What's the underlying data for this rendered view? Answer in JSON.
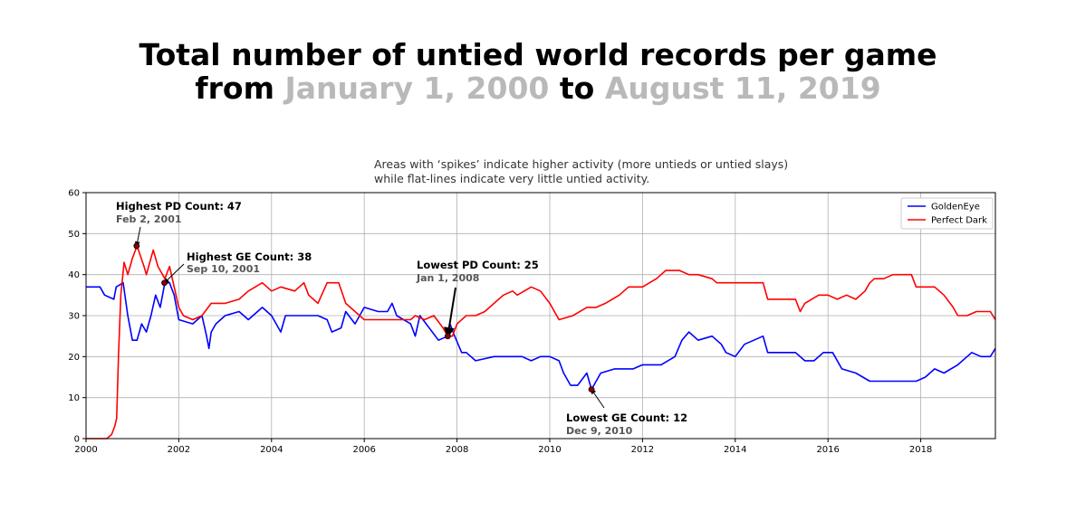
{
  "header": {
    "line1": "Total number of untied world records per game",
    "line2_prefix": "from ",
    "start_date": "January 1, 2000",
    "line2_mid": " to ",
    "end_date": "August 11, 2019"
  },
  "subtitle": {
    "line1": "Areas with ‘spikes’ indicate higher activity (more untieds or untied slays)",
    "line2": "while flat-lines indicate very little untied activity."
  },
  "chart_data": {
    "type": "line",
    "title": "Total number of untied world records per game from January 1, 2000 to August 11, 2019",
    "xlabel": "",
    "ylabel": "",
    "xlim": [
      2000,
      2019.61
    ],
    "ylim": [
      0,
      60
    ],
    "x_ticks": [
      "2000",
      "2002",
      "2004",
      "2006",
      "2008",
      "2010",
      "2012",
      "2014",
      "2016",
      "2018"
    ],
    "y_ticks": [
      "0",
      "10",
      "20",
      "30",
      "40",
      "50",
      "60"
    ],
    "grid": true,
    "legend_position": "top-right",
    "colors": {
      "GoldenEye": "#0000ff",
      "Perfect Dark": "#ff0000",
      "grid": "#b0b0b0",
      "annotation_marker": "#8b0000"
    },
    "series": [
      {
        "name": "GoldenEye",
        "color": "#0000ff",
        "points": [
          [
            2000.0,
            37
          ],
          [
            2000.3,
            37
          ],
          [
            2000.4,
            35
          ],
          [
            2000.6,
            34
          ],
          [
            2000.65,
            37
          ],
          [
            2000.8,
            38
          ],
          [
            2000.9,
            30
          ],
          [
            2001.0,
            24
          ],
          [
            2001.1,
            24
          ],
          [
            2001.2,
            28
          ],
          [
            2001.3,
            26
          ],
          [
            2001.4,
            30
          ],
          [
            2001.5,
            35
          ],
          [
            2001.6,
            32
          ],
          [
            2001.7,
            38
          ],
          [
            2001.8,
            38
          ],
          [
            2001.9,
            35
          ],
          [
            2002.0,
            29
          ],
          [
            2002.3,
            28
          ],
          [
            2002.5,
            30
          ],
          [
            2002.6,
            25
          ],
          [
            2002.65,
            22
          ],
          [
            2002.7,
            26
          ],
          [
            2002.8,
            28
          ],
          [
            2003.0,
            30
          ],
          [
            2003.3,
            31
          ],
          [
            2003.5,
            29
          ],
          [
            2003.8,
            32
          ],
          [
            2004.0,
            30
          ],
          [
            2004.2,
            26
          ],
          [
            2004.3,
            30
          ],
          [
            2005.0,
            30
          ],
          [
            2005.2,
            29
          ],
          [
            2005.3,
            26
          ],
          [
            2005.5,
            27
          ],
          [
            2005.6,
            31
          ],
          [
            2005.8,
            28
          ],
          [
            2006.0,
            32
          ],
          [
            2006.3,
            31
          ],
          [
            2006.5,
            31
          ],
          [
            2006.6,
            33
          ],
          [
            2006.7,
            30
          ],
          [
            2007.0,
            28
          ],
          [
            2007.1,
            25
          ],
          [
            2007.2,
            30
          ],
          [
            2007.4,
            27
          ],
          [
            2007.6,
            24
          ],
          [
            2007.8,
            25
          ],
          [
            2007.85,
            28
          ],
          [
            2007.95,
            25
          ],
          [
            2008.1,
            21
          ],
          [
            2008.2,
            21
          ],
          [
            2008.4,
            19
          ],
          [
            2008.8,
            20
          ],
          [
            2009.4,
            20
          ],
          [
            2009.6,
            19
          ],
          [
            2009.8,
            20
          ],
          [
            2010.0,
            20
          ],
          [
            2010.2,
            19
          ],
          [
            2010.3,
            16
          ],
          [
            2010.45,
            13
          ],
          [
            2010.6,
            13
          ],
          [
            2010.8,
            16
          ],
          [
            2010.9,
            12
          ],
          [
            2011.0,
            14
          ],
          [
            2011.1,
            16
          ],
          [
            2011.4,
            17
          ],
          [
            2011.8,
            17
          ],
          [
            2012.0,
            18
          ],
          [
            2012.4,
            18
          ],
          [
            2012.7,
            20
          ],
          [
            2012.85,
            24
          ],
          [
            2013.0,
            26
          ],
          [
            2013.2,
            24
          ],
          [
            2013.5,
            25
          ],
          [
            2013.7,
            23
          ],
          [
            2013.8,
            21
          ],
          [
            2014.0,
            20
          ],
          [
            2014.2,
            23
          ],
          [
            2014.4,
            24
          ],
          [
            2014.6,
            25
          ],
          [
            2014.7,
            21
          ],
          [
            2015.3,
            21
          ],
          [
            2015.5,
            19
          ],
          [
            2015.7,
            19
          ],
          [
            2015.9,
            21
          ],
          [
            2016.1,
            21
          ],
          [
            2016.3,
            17
          ],
          [
            2016.6,
            16
          ],
          [
            2016.9,
            14
          ],
          [
            2017.6,
            14
          ],
          [
            2017.9,
            14
          ],
          [
            2018.1,
            15
          ],
          [
            2018.3,
            17
          ],
          [
            2018.5,
            16
          ],
          [
            2018.8,
            18
          ],
          [
            2019.0,
            20
          ],
          [
            2019.1,
            21
          ],
          [
            2019.3,
            20
          ],
          [
            2019.5,
            20
          ],
          [
            2019.61,
            22
          ]
        ]
      },
      {
        "name": "Perfect Dark",
        "color": "#ff0000",
        "points": [
          [
            2000.0,
            0
          ],
          [
            2000.45,
            0
          ],
          [
            2000.55,
            1
          ],
          [
            2000.62,
            3
          ],
          [
            2000.66,
            5
          ],
          [
            2000.7,
            20
          ],
          [
            2000.75,
            35
          ],
          [
            2000.82,
            43
          ],
          [
            2000.9,
            40
          ],
          [
            2001.0,
            44
          ],
          [
            2001.1,
            47
          ],
          [
            2001.25,
            42
          ],
          [
            2001.3,
            40
          ],
          [
            2001.45,
            46
          ],
          [
            2001.55,
            42
          ],
          [
            2001.7,
            39
          ],
          [
            2001.8,
            42
          ],
          [
            2001.9,
            37
          ],
          [
            2002.0,
            32
          ],
          [
            2002.1,
            30
          ],
          [
            2002.3,
            29
          ],
          [
            2002.5,
            30
          ],
          [
            2002.7,
            33
          ],
          [
            2003.0,
            33
          ],
          [
            2003.3,
            34
          ],
          [
            2003.5,
            36
          ],
          [
            2003.8,
            38
          ],
          [
            2004.0,
            36
          ],
          [
            2004.2,
            37
          ],
          [
            2004.5,
            36
          ],
          [
            2004.7,
            38
          ],
          [
            2004.8,
            35
          ],
          [
            2005.0,
            33
          ],
          [
            2005.2,
            38
          ],
          [
            2005.45,
            38
          ],
          [
            2005.6,
            33
          ],
          [
            2005.8,
            31
          ],
          [
            2006.0,
            29
          ],
          [
            2006.5,
            29
          ],
          [
            2007.0,
            29
          ],
          [
            2007.1,
            30
          ],
          [
            2007.3,
            29
          ],
          [
            2007.5,
            30
          ],
          [
            2007.7,
            27
          ],
          [
            2007.8,
            25
          ],
          [
            2007.9,
            25
          ],
          [
            2008.0,
            28
          ],
          [
            2008.2,
            30
          ],
          [
            2008.4,
            30
          ],
          [
            2008.6,
            31
          ],
          [
            2008.8,
            33
          ],
          [
            2009.0,
            35
          ],
          [
            2009.2,
            36
          ],
          [
            2009.3,
            35
          ],
          [
            2009.6,
            37
          ],
          [
            2009.8,
            36
          ],
          [
            2010.0,
            33
          ],
          [
            2010.2,
            29
          ],
          [
            2010.5,
            30
          ],
          [
            2010.8,
            32
          ],
          [
            2011.0,
            32
          ],
          [
            2011.2,
            33
          ],
          [
            2011.5,
            35
          ],
          [
            2011.7,
            37
          ],
          [
            2012.0,
            37
          ],
          [
            2012.3,
            39
          ],
          [
            2012.5,
            41
          ],
          [
            2012.8,
            41
          ],
          [
            2013.0,
            40
          ],
          [
            2013.2,
            40
          ],
          [
            2013.5,
            39
          ],
          [
            2013.6,
            38
          ],
          [
            2014.0,
            38
          ],
          [
            2014.6,
            38
          ],
          [
            2014.7,
            34
          ],
          [
            2015.0,
            34
          ],
          [
            2015.3,
            34
          ],
          [
            2015.4,
            31
          ],
          [
            2015.5,
            33
          ],
          [
            2015.8,
            35
          ],
          [
            2016.0,
            35
          ],
          [
            2016.2,
            34
          ],
          [
            2016.4,
            35
          ],
          [
            2016.6,
            34
          ],
          [
            2016.8,
            36
          ],
          [
            2016.9,
            38
          ],
          [
            2017.0,
            39
          ],
          [
            2017.2,
            39
          ],
          [
            2017.4,
            40
          ],
          [
            2017.8,
            40
          ],
          [
            2017.9,
            37
          ],
          [
            2018.3,
            37
          ],
          [
            2018.5,
            35
          ],
          [
            2018.7,
            32
          ],
          [
            2018.8,
            30
          ],
          [
            2019.0,
            30
          ],
          [
            2019.2,
            31
          ],
          [
            2019.4,
            31
          ],
          [
            2019.5,
            31
          ],
          [
            2019.61,
            29
          ]
        ]
      }
    ],
    "annotations": [
      {
        "id": "pd-high",
        "label": "Highest PD Count: 47",
        "date": "Feb 2, 2001",
        "x": 2001.09,
        "y": 47
      },
      {
        "id": "ge-high",
        "label": "Highest GE Count: 38",
        "date": "Sep 10, 2001",
        "x": 2001.69,
        "y": 38
      },
      {
        "id": "pd-low",
        "label": "Lowest PD Count: 25",
        "date": "Jan 1, 2008",
        "x": 2007.8,
        "y": 25
      },
      {
        "id": "ge-low",
        "label": "Lowest GE Count: 12",
        "date": "Dec 9, 2010",
        "x": 2010.9,
        "y": 12
      }
    ]
  }
}
